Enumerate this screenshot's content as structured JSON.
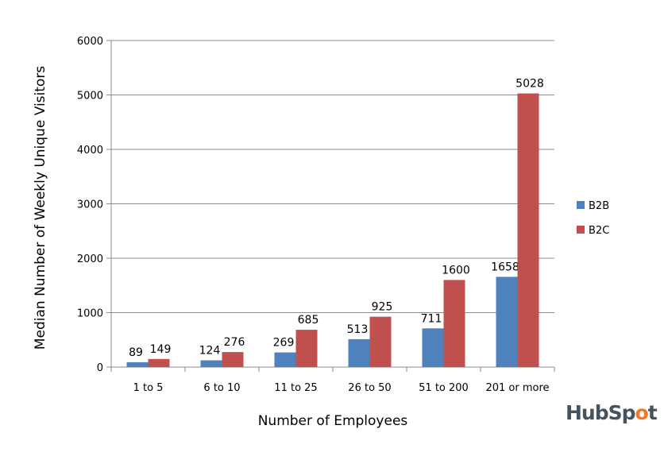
{
  "chart_data": {
    "type": "bar",
    "title": "",
    "xlabel": "Number of Employees",
    "ylabel": "Median Number of Weekly Unique Visitors",
    "categories": [
      "1 to 5",
      "6 to 10",
      "11 to 25",
      "26 to 50",
      "51 to 200",
      "201 or more"
    ],
    "series": [
      {
        "name": "B2B",
        "color": "#4F81BD",
        "values": [
          89,
          124,
          269,
          513,
          711,
          1658
        ]
      },
      {
        "name": "B2C",
        "color": "#C0504D",
        "values": [
          149,
          276,
          685,
          925,
          1600,
          5028
        ]
      }
    ],
    "ylim": [
      0,
      6000
    ],
    "yticks": [
      0,
      1000,
      2000,
      3000,
      4000,
      5000,
      6000
    ],
    "grid": true,
    "legend": "right",
    "data_labels": true
  },
  "logo": {
    "text": "HubSpot",
    "color": "#45535E",
    "accent": "#F57722"
  }
}
